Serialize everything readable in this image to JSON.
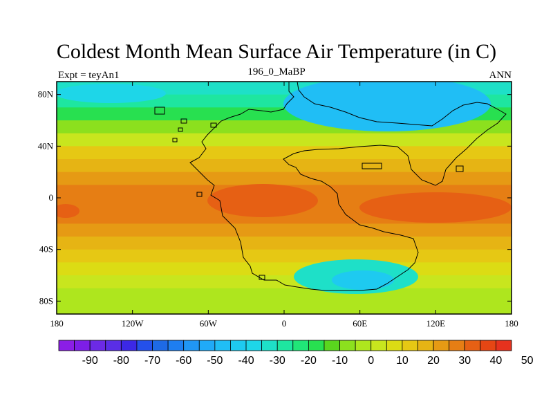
{
  "title": "Coldest Month Mean Surface Air Temperature (in C)",
  "left_label": "Expt = teyAn1",
  "center_label": "196_0_MaBP",
  "right_label": "ANN",
  "map": {
    "x_ticks": [
      {
        "lon": -180,
        "label": "180"
      },
      {
        "lon": -120,
        "label": "120W"
      },
      {
        "lon": -60,
        "label": "60W"
      },
      {
        "lon": 0,
        "label": "0"
      },
      {
        "lon": 60,
        "label": "60E"
      },
      {
        "lon": 120,
        "label": "120E"
      },
      {
        "lon": 180,
        "label": "180"
      }
    ],
    "y_ticks": [
      {
        "lat": 80,
        "label": "80N"
      },
      {
        "lat": 40,
        "label": "40N"
      },
      {
        "lat": 0,
        "label": "0"
      },
      {
        "lat": -40,
        "label": "40S"
      },
      {
        "lat": -80,
        "label": "80S"
      }
    ],
    "lon_range": [
      -180,
      180
    ],
    "lat_range": [
      -90,
      90
    ]
  },
  "colorbar": {
    "colors": [
      "#8b1ee6",
      "#7d1ee6",
      "#6c2ae6",
      "#5a2ee6",
      "#3c28e6",
      "#2450ea",
      "#1e6ae6",
      "#1e7ef0",
      "#2096f5",
      "#20aaf8",
      "#20bef5",
      "#1ecaf0",
      "#1ed6e8",
      "#1ee0c8",
      "#1ee6a0",
      "#20e678",
      "#28e050",
      "#5ad61e",
      "#8ce01e",
      "#aee61e",
      "#c8e61e",
      "#dcdc14",
      "#e6c814",
      "#e6b414",
      "#e69a14",
      "#e67e14",
      "#e66014",
      "#e64614",
      "#e6321e"
    ],
    "labels": [
      "-90",
      "-80",
      "-70",
      "-60",
      "-50",
      "-40",
      "-30",
      "-20",
      "-10",
      "0",
      "10",
      "20",
      "30",
      "40",
      "50"
    ]
  },
  "field_bands": [
    {
      "lat": 90,
      "value": -30
    },
    {
      "lat": 80,
      "value": -25
    },
    {
      "lat": 70,
      "value": -15
    },
    {
      "lat": 60,
      "value": -5
    },
    {
      "lat": 50,
      "value": 5
    },
    {
      "lat": 40,
      "value": 15
    },
    {
      "lat": 30,
      "value": 22
    },
    {
      "lat": 20,
      "value": 27
    },
    {
      "lat": 10,
      "value": 32
    },
    {
      "lat": 0,
      "value": 33
    },
    {
      "lat": -10,
      "value": 32
    },
    {
      "lat": -20,
      "value": 27
    },
    {
      "lat": -30,
      "value": 20
    },
    {
      "lat": -40,
      "value": 15
    },
    {
      "lat": -50,
      "value": 10
    },
    {
      "lat": -60,
      "value": 5
    },
    {
      "lat": -70,
      "value": 2
    },
    {
      "lat": -80,
      "value": 0
    },
    {
      "lat": -90,
      "value": 0
    }
  ]
}
